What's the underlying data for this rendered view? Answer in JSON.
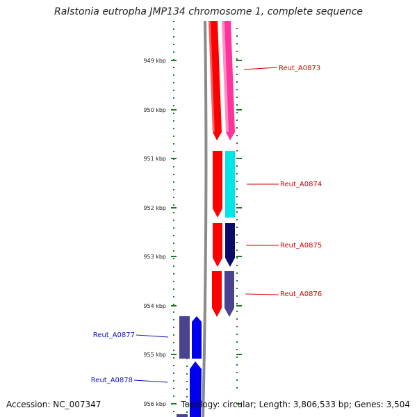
{
  "title": "Ralstonia eutropha JMP134 chromosome 1, complete sequence",
  "accession": "Accession: NC_007347",
  "summary": "Topology: circular; Length: 3,806,533 bp; Genes: 3,504",
  "ticks": [
    "949 kbp",
    "950 kbp",
    "951 kbp",
    "952 kbp",
    "953 kbp",
    "954 kbp",
    "955 kbp",
    "956 kbp"
  ],
  "labels": [
    {
      "text": "Reut_A0873",
      "color": "#d40000",
      "side": "right"
    },
    {
      "text": "Reut_A0874",
      "color": "#d40000",
      "side": "right"
    },
    {
      "text": "Reut_A0875",
      "color": "#d40000",
      "side": "right"
    },
    {
      "text": "Reut_A0876",
      "color": "#d40000",
      "side": "right"
    },
    {
      "text": "Reut_A0877",
      "color": "#1010cc",
      "side": "left"
    },
    {
      "text": "Reut_A0878",
      "color": "#1010cc",
      "side": "left"
    }
  ],
  "colors": {
    "backbone": "#8a8a8a",
    "tick": "#1a7a1a",
    "forward_strand": "#ff0000",
    "reverse_strand": "#0000ee",
    "pink_track": "#ff3399",
    "cyan_track": "#00e5e5",
    "navy_track": "#0a0a6a",
    "slate_track": "#4a4490"
  }
}
